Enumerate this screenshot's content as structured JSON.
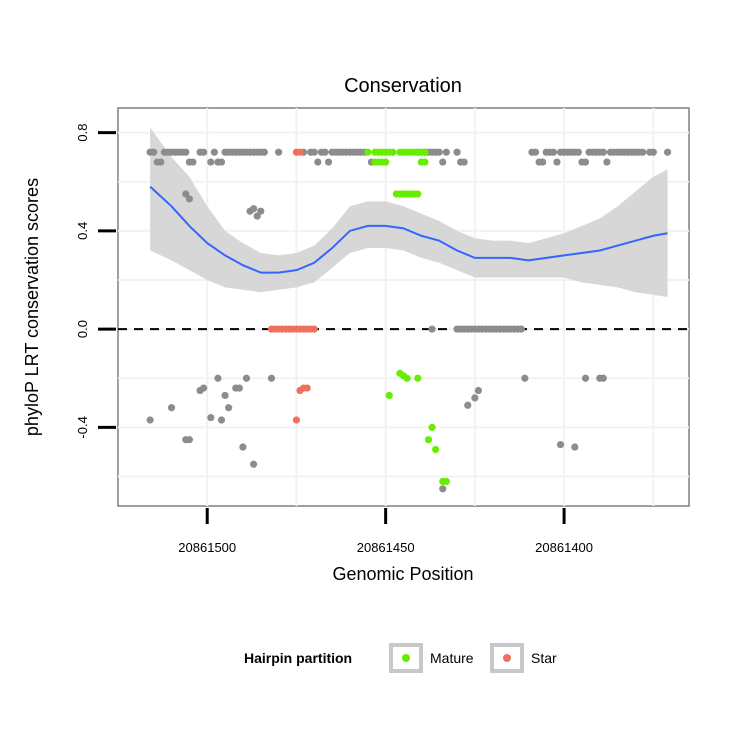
{
  "chart_data": {
    "type": "scatter",
    "title": "Conservation",
    "xlabel": "Genomic Position",
    "ylabel": "phyloP LRT conservation scores",
    "x_reversed": true,
    "xlim": [
      20861525,
      20861365
    ],
    "ylim": [
      -0.72,
      0.9
    ],
    "x_ticks": [
      20861500,
      20861450,
      20861400
    ],
    "x_tick_labels": [
      "20861500",
      "20861450",
      "20861400"
    ],
    "y_ticks": [
      -0.4,
      0.0,
      0.4,
      0.8
    ],
    "y_tick_labels": [
      "-0.4",
      "0.0",
      "0.4",
      "0.8"
    ],
    "reference_line": {
      "y": 0,
      "style": "dashed"
    },
    "legend": {
      "title": "Hairpin partition",
      "entries": [
        {
          "label": "Mature",
          "color": "#66ee00"
        },
        {
          "label": "Star",
          "color": "#f07060"
        }
      ]
    },
    "colors": {
      "other": "#8c8c8c",
      "mature": "#66ee00",
      "star": "#f07060",
      "smooth": "#3366ff",
      "band": "#d3d3d3"
    },
    "series": [
      {
        "name": "Other",
        "color": "#8c8c8c",
        "points": [
          [
            20861516,
            0.72
          ],
          [
            20861515,
            0.72
          ],
          [
            20861514,
            0.68
          ],
          [
            20861513,
            0.68
          ],
          [
            20861512,
            0.72
          ],
          [
            20861511,
            0.72
          ],
          [
            20861510,
            0.72
          ],
          [
            20861509,
            0.72
          ],
          [
            20861508,
            0.72
          ],
          [
            20861507,
            0.72
          ],
          [
            20861506,
            0.72
          ],
          [
            20861505,
            0.68
          ],
          [
            20861504,
            0.68
          ],
          [
            20861502,
            0.72
          ],
          [
            20861501,
            0.72
          ],
          [
            20861499,
            0.68
          ],
          [
            20861498,
            0.72
          ],
          [
            20861497,
            0.68
          ],
          [
            20861496,
            0.68
          ],
          [
            20861495,
            0.72
          ],
          [
            20861494,
            0.72
          ],
          [
            20861493,
            0.72
          ],
          [
            20861492,
            0.72
          ],
          [
            20861491,
            0.72
          ],
          [
            20861490,
            0.72
          ],
          [
            20861489,
            0.72
          ],
          [
            20861488,
            0.72
          ],
          [
            20861487,
            0.72
          ],
          [
            20861486,
            0.72
          ],
          [
            20861485,
            0.72
          ],
          [
            20861484,
            0.72
          ],
          [
            20861480,
            0.72
          ],
          [
            20861473,
            0.72
          ],
          [
            20861471,
            0.72
          ],
          [
            20861470,
            0.72
          ],
          [
            20861469,
            0.68
          ],
          [
            20861468,
            0.72
          ],
          [
            20861467,
            0.72
          ],
          [
            20861466,
            0.68
          ],
          [
            20861465,
            0.72
          ],
          [
            20861464,
            0.72
          ],
          [
            20861463,
            0.72
          ],
          [
            20861462,
            0.72
          ],
          [
            20861461,
            0.72
          ],
          [
            20861460,
            0.72
          ],
          [
            20861459,
            0.72
          ],
          [
            20861458,
            0.72
          ],
          [
            20861457,
            0.72
          ],
          [
            20861456,
            0.72
          ],
          [
            20861454,
            0.68
          ],
          [
            20861441,
            0.72
          ],
          [
            20861439,
            0.72
          ],
          [
            20861438,
            0.72
          ],
          [
            20861437,
            0.72
          ],
          [
            20861436,
            0.72
          ],
          [
            20861435,
            0.72
          ],
          [
            20861434,
            0.68
          ],
          [
            20861433,
            0.72
          ],
          [
            20861430,
            0.72
          ],
          [
            20861429,
            0.68
          ],
          [
            20861428,
            0.68
          ],
          [
            20861409,
            0.72
          ],
          [
            20861408,
            0.72
          ],
          [
            20861407,
            0.68
          ],
          [
            20861406,
            0.68
          ],
          [
            20861405,
            0.72
          ],
          [
            20861404,
            0.72
          ],
          [
            20861403,
            0.72
          ],
          [
            20861402,
            0.68
          ],
          [
            20861401,
            0.72
          ],
          [
            20861400,
            0.72
          ],
          [
            20861399,
            0.72
          ],
          [
            20861398,
            0.72
          ],
          [
            20861397,
            0.72
          ],
          [
            20861396,
            0.72
          ],
          [
            20861395,
            0.68
          ],
          [
            20861394,
            0.68
          ],
          [
            20861393,
            0.72
          ],
          [
            20861392,
            0.72
          ],
          [
            20861391,
            0.72
          ],
          [
            20861390,
            0.72
          ],
          [
            20861389,
            0.72
          ],
          [
            20861388,
            0.68
          ],
          [
            20861387,
            0.72
          ],
          [
            20861386,
            0.72
          ],
          [
            20861385,
            0.72
          ],
          [
            20861384,
            0.72
          ],
          [
            20861383,
            0.72
          ],
          [
            20861382,
            0.72
          ],
          [
            20861381,
            0.72
          ],
          [
            20861380,
            0.72
          ],
          [
            20861379,
            0.72
          ],
          [
            20861378,
            0.72
          ],
          [
            20861376,
            0.72
          ],
          [
            20861375,
            0.72
          ],
          [
            20861371,
            0.72
          ],
          [
            20861506,
            0.55
          ],
          [
            20861505,
            0.53
          ],
          [
            20861488,
            0.48
          ],
          [
            20861487,
            0.49
          ],
          [
            20861486,
            0.46
          ],
          [
            20861485,
            0.48
          ],
          [
            20861437,
            0.0
          ],
          [
            20861430,
            0.0
          ],
          [
            20861429,
            0.0
          ],
          [
            20861428,
            0.0
          ],
          [
            20861427,
            0.0
          ],
          [
            20861426,
            0.0
          ],
          [
            20861425,
            0.0
          ],
          [
            20861424,
            0.0
          ],
          [
            20861423,
            0.0
          ],
          [
            20861422,
            0.0
          ],
          [
            20861421,
            0.0
          ],
          [
            20861420,
            0.0
          ],
          [
            20861419,
            0.0
          ],
          [
            20861418,
            0.0
          ],
          [
            20861417,
            0.0
          ],
          [
            20861416,
            0.0
          ],
          [
            20861415,
            0.0
          ],
          [
            20861414,
            0.0
          ],
          [
            20861413,
            0.0
          ],
          [
            20861412,
            0.0
          ],
          [
            20861516,
            -0.37
          ],
          [
            20861510,
            -0.32
          ],
          [
            20861506,
            -0.45
          ],
          [
            20861505,
            -0.45
          ],
          [
            20861502,
            -0.25
          ],
          [
            20861501,
            -0.24
          ],
          [
            20861499,
            -0.36
          ],
          [
            20861497,
            -0.2
          ],
          [
            20861496,
            -0.37
          ],
          [
            20861495,
            -0.27
          ],
          [
            20861494,
            -0.32
          ],
          [
            20861492,
            -0.24
          ],
          [
            20861491,
            -0.24
          ],
          [
            20861490,
            -0.48
          ],
          [
            20861489,
            -0.2
          ],
          [
            20861487,
            -0.55
          ],
          [
            20861482,
            -0.2
          ],
          [
            20861434,
            -0.65
          ],
          [
            20861427,
            -0.31
          ],
          [
            20861425,
            -0.28
          ],
          [
            20861424,
            -0.25
          ],
          [
            20861411,
            -0.2
          ],
          [
            20861401,
            -0.47
          ],
          [
            20861397,
            -0.48
          ],
          [
            20861394,
            -0.2
          ],
          [
            20861390,
            -0.2
          ],
          [
            20861389,
            -0.2
          ]
        ]
      },
      {
        "name": "Mature",
        "color": "#66ee00",
        "points": [
          [
            20861455,
            0.72
          ],
          [
            20861453,
            0.72
          ],
          [
            20861452,
            0.72
          ],
          [
            20861451,
            0.72
          ],
          [
            20861450,
            0.72
          ],
          [
            20861449,
            0.72
          ],
          [
            20861448,
            0.72
          ],
          [
            20861446,
            0.72
          ],
          [
            20861445,
            0.72
          ],
          [
            20861444,
            0.72
          ],
          [
            20861443,
            0.72
          ],
          [
            20861442,
            0.72
          ],
          [
            20861441,
            0.72
          ],
          [
            20861440,
            0.72
          ],
          [
            20861439,
            0.72
          ],
          [
            20861439,
            0.68
          ],
          [
            20861440,
            0.68
          ],
          [
            20861450,
            0.68
          ],
          [
            20861451,
            0.68
          ],
          [
            20861452,
            0.68
          ],
          [
            20861453,
            0.68
          ],
          [
            20861447,
            0.55
          ],
          [
            20861446,
            0.55
          ],
          [
            20861445,
            0.55
          ],
          [
            20861444,
            0.55
          ],
          [
            20861443,
            0.55
          ],
          [
            20861442,
            0.55
          ],
          [
            20861441,
            0.55
          ],
          [
            20861446,
            -0.18
          ],
          [
            20861445,
            -0.19
          ],
          [
            20861449,
            -0.27
          ],
          [
            20861444,
            -0.2
          ],
          [
            20861441,
            -0.2
          ],
          [
            20861437,
            -0.4
          ],
          [
            20861438,
            -0.45
          ],
          [
            20861436,
            -0.49
          ],
          [
            20861434,
            -0.62
          ],
          [
            20861433,
            -0.62
          ]
        ]
      },
      {
        "name": "Star",
        "color": "#f07060",
        "points": [
          [
            20861475,
            0.72
          ],
          [
            20861474,
            0.72
          ],
          [
            20861482,
            0.0
          ],
          [
            20861481,
            0.0
          ],
          [
            20861480,
            0.0
          ],
          [
            20861479,
            0.0
          ],
          [
            20861478,
            0.0
          ],
          [
            20861477,
            0.0
          ],
          [
            20861476,
            0.0
          ],
          [
            20861475,
            0.0
          ],
          [
            20861474,
            0.0
          ],
          [
            20861473,
            0.0
          ],
          [
            20861472,
            0.0
          ],
          [
            20861471,
            0.0
          ],
          [
            20861470,
            0.0
          ],
          [
            20861474,
            -0.25
          ],
          [
            20861473,
            -0.24
          ],
          [
            20861472,
            -0.24
          ],
          [
            20861475,
            -0.37
          ]
        ]
      }
    ],
    "smooth_line": {
      "x": [
        20861516,
        20861510,
        20861505,
        20861500,
        20861495,
        20861490,
        20861485,
        20861480,
        20861475,
        20861470,
        20861465,
        20861460,
        20861455,
        20861450,
        20861445,
        20861440,
        20861435,
        20861430,
        20861425,
        20861420,
        20861415,
        20861410,
        20861405,
        20861400,
        20861395,
        20861390,
        20861385,
        20861380,
        20861375,
        20861371
      ],
      "y": [
        0.58,
        0.5,
        0.42,
        0.35,
        0.3,
        0.26,
        0.23,
        0.23,
        0.24,
        0.27,
        0.33,
        0.4,
        0.42,
        0.42,
        0.41,
        0.38,
        0.36,
        0.32,
        0.29,
        0.29,
        0.29,
        0.28,
        0.29,
        0.3,
        0.31,
        0.32,
        0.34,
        0.36,
        0.38,
        0.39
      ]
    },
    "confidence_band": {
      "upper": [
        0.82,
        0.7,
        0.62,
        0.5,
        0.4,
        0.35,
        0.31,
        0.3,
        0.31,
        0.34,
        0.41,
        0.5,
        0.52,
        0.52,
        0.5,
        0.47,
        0.44,
        0.4,
        0.37,
        0.36,
        0.36,
        0.35,
        0.37,
        0.39,
        0.42,
        0.45,
        0.5,
        0.56,
        0.62,
        0.65
      ],
      "lower": [
        0.32,
        0.28,
        0.24,
        0.2,
        0.17,
        0.16,
        0.15,
        0.16,
        0.17,
        0.19,
        0.25,
        0.31,
        0.33,
        0.33,
        0.32,
        0.29,
        0.27,
        0.24,
        0.21,
        0.21,
        0.21,
        0.21,
        0.21,
        0.21,
        0.19,
        0.18,
        0.17,
        0.15,
        0.14,
        0.13
      ]
    }
  }
}
